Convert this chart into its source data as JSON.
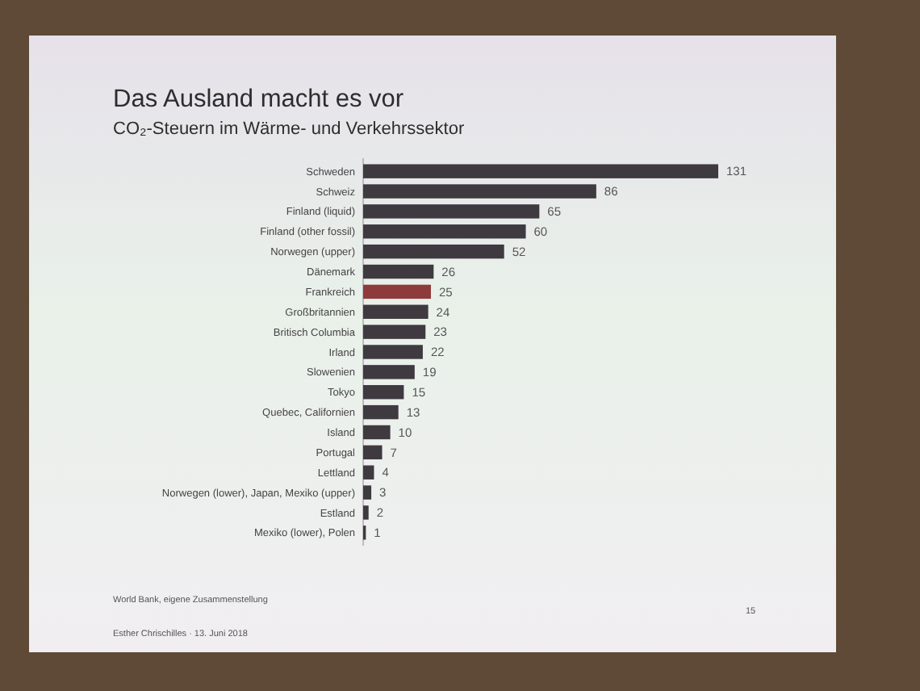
{
  "chart_data": {
    "type": "bar",
    "orientation": "horizontal",
    "title": "Das Ausland macht es vor",
    "subtitle": "CO₂-Steuern im Wärme- und Verkehrssektor",
    "categories": [
      "Schweden",
      "Schweiz",
      "Finland (liquid)",
      "Finland (other fossil)",
      "Norwegen (upper)",
      "Dänemark",
      "Frankreich",
      "Großbritannien",
      "Britisch Columbia",
      "Irland",
      "Slowenien",
      "Tokyo",
      "Quebec, Californien",
      "Island",
      "Portugal",
      "Lettland",
      "Norwegen (lower), Japan, Mexiko (upper)",
      "Estland",
      "Mexiko (lower), Polen"
    ],
    "values": [
      131,
      86,
      65,
      60,
      52,
      26,
      25,
      24,
      23,
      22,
      19,
      15,
      13,
      10,
      7,
      4,
      3,
      2,
      1
    ],
    "colors": [
      "#3e3a40",
      "#3e3a40",
      "#3e3a40",
      "#3e3a40",
      "#3e3a40",
      "#3e3a40",
      "#8e3b3b",
      "#3e3a40",
      "#3e3a40",
      "#3e3a40",
      "#3e3a40",
      "#3e3a40",
      "#3e3a40",
      "#3e3a40",
      "#3e3a40",
      "#3e3a40",
      "#3e3a40",
      "#3e3a40",
      "#3e3a40"
    ],
    "data_labels": true,
    "annotations": [
      "World Bank, eigene Zusammenstellung",
      "Esther Chrischilles · 13. Juni 2018",
      "15"
    ]
  }
}
